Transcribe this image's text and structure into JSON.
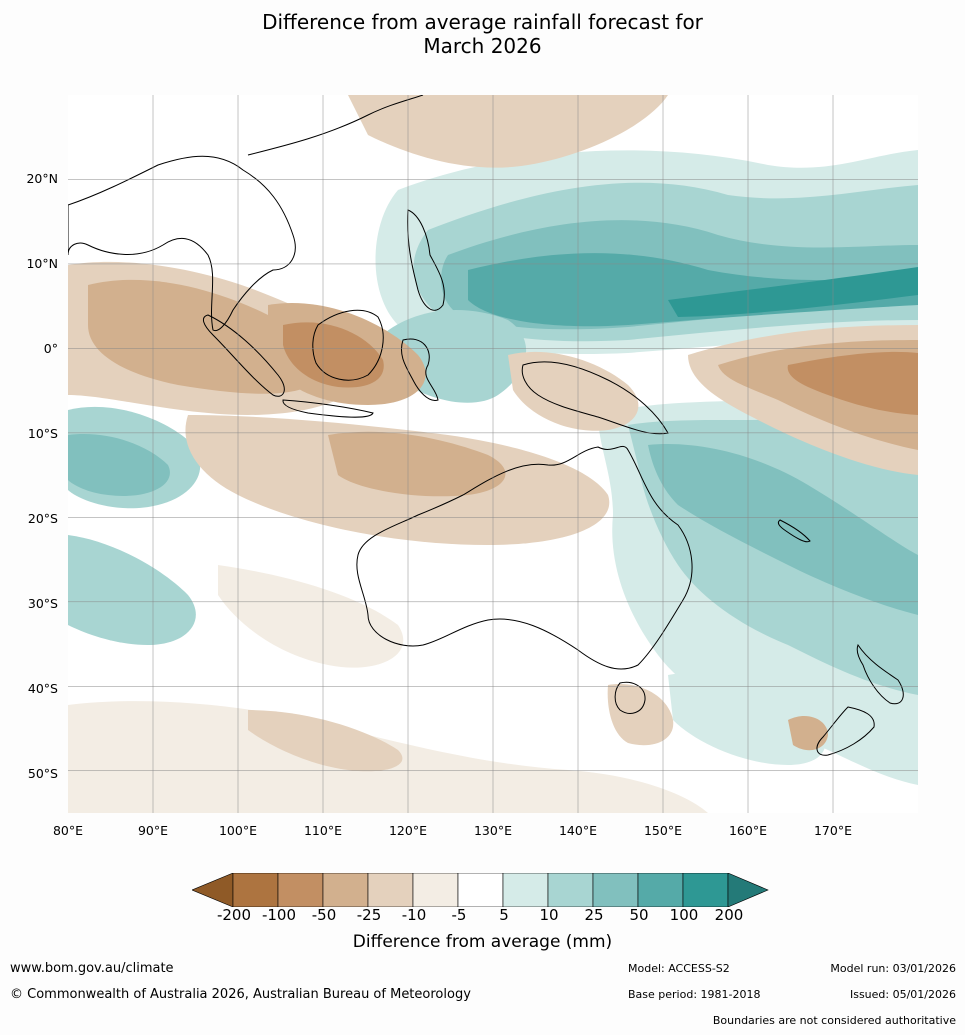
{
  "title": {
    "line1": "Difference from average rainfall forecast for",
    "line2": "March 2026"
  },
  "map": {
    "lat_labels": [
      "20°N",
      "10°N",
      "0°",
      "10°S",
      "20°S",
      "30°S",
      "40°S",
      "50°S"
    ],
    "lon_labels": [
      "80°E",
      "90°E",
      "100°E",
      "110°E",
      "120°E",
      "130°E",
      "140°E",
      "150°E",
      "160°E",
      "170°E"
    ],
    "lon_range": [
      80,
      180
    ],
    "lat_range": [
      -55,
      30
    ],
    "gridlines": true
  },
  "legend": {
    "title": "Difference from average (mm)",
    "ticks": [
      "-200",
      "-100",
      "-50",
      "-25",
      "-10",
      "-5",
      "5",
      "10",
      "25",
      "50",
      "100",
      "200"
    ],
    "colors": {
      "below_min": "#8f5a27",
      "bins": [
        "#ad7440",
        "#c28f63",
        "#d2b08e",
        "#e4d1bd",
        "#f3ede4",
        "#ffffff",
        "#d5ebe8",
        "#a8d5d2",
        "#81c0be",
        "#55aaa8",
        "#2e9894"
      ],
      "above_max": "#247a78"
    }
  },
  "footer": {
    "website": "www.bom.gov.au/climate",
    "copyright": "© Commonwealth of Australia 2026, Australian Bureau of Meteorology",
    "model": "Model: ACCESS-S2",
    "base_period": "Base period: 1981-2018",
    "model_run": "Model run: 03/01/2026",
    "issued": "Issued: 05/01/2026",
    "disclaimer": "Boundaries are not considered authoritative"
  }
}
